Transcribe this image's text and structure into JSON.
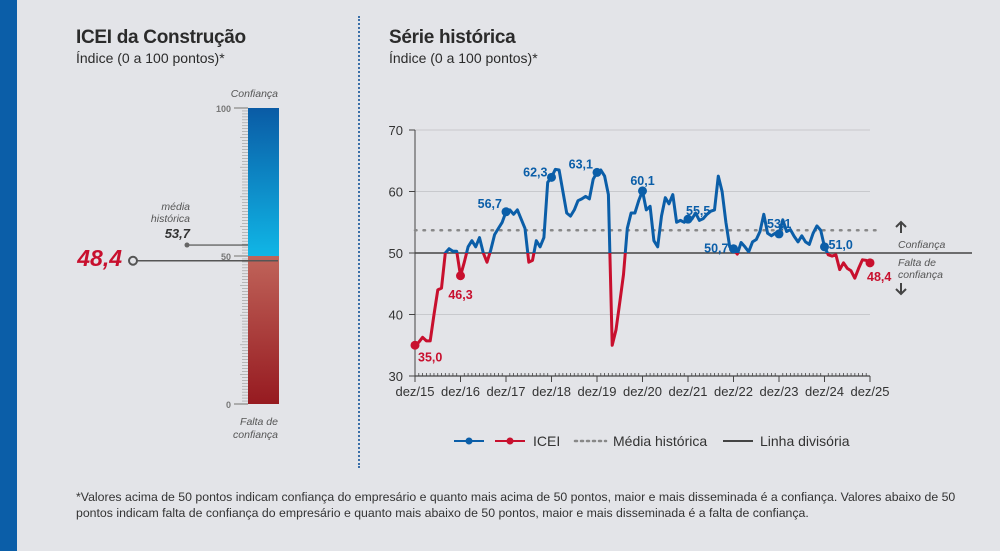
{
  "left": {
    "title": "ICEI da Construção",
    "subtitle": "Índice (0 a 100 pontos)*",
    "gauge": {
      "top_label": "Confiança",
      "bottom_label_1": "Falta de",
      "bottom_label_2": "confiança",
      "ticks": [
        "100",
        "50",
        "0"
      ],
      "range": [
        0,
        100
      ],
      "mean_label_1": "média",
      "mean_label_2": "histórica",
      "mean_value": 53.7,
      "mean_text": "53,7",
      "current_value": 48.4,
      "current_text": "48,4",
      "colors": {
        "blue_top": "#0a5ba5",
        "blue_bottom": "#10b6e6",
        "red_top": "#c0645a",
        "red_bottom": "#961a20",
        "current": "#c8102e"
      }
    }
  },
  "right": {
    "title": "Série histórica",
    "subtitle": "Índice (0 a 100 pontos)*",
    "side_up": "Confiança",
    "side_down_1": "Falta de",
    "side_down_2": "confiança"
  },
  "chart_data": {
    "type": "line",
    "ylim": [
      30,
      70
    ],
    "yticks": [
      "30",
      "40",
      "50",
      "60",
      "70"
    ],
    "xticks": [
      "dez/15",
      "dez/16",
      "dez/17",
      "dez/18",
      "dez/19",
      "dez/20",
      "dez/21",
      "dez/22",
      "dez/23",
      "dez/24",
      "dez/25"
    ],
    "grid": true,
    "legend_position": "bottom",
    "mean": 53.7,
    "divider": 50,
    "colors": {
      "above": "#0b5ea8",
      "below": "#c8102e",
      "mean": "#888888",
      "divider": "#444444"
    },
    "series": [
      {
        "name": "ICEI",
        "start": "dez/15",
        "frequency": "monthly",
        "values": [
          35.0,
          35.5,
          36.3,
          35.7,
          35.7,
          40.0,
          44.0,
          44.3,
          50.0,
          50.7,
          50.3,
          50.3,
          46.3,
          48.5,
          51.0,
          52.0,
          51.0,
          52.5,
          50.0,
          48.5,
          50.5,
          53.0,
          54.0,
          55.0,
          56.7,
          57.0,
          56.3,
          57.0,
          55.5,
          54.0,
          48.5,
          48.8,
          52.0,
          51.0,
          52.5,
          61.5,
          62.3,
          63.6,
          63.5,
          60.0,
          56.5,
          56.0,
          57.0,
          58.5,
          58.8,
          59.2,
          58.8,
          62.0,
          63.1,
          63.5,
          62.5,
          59.5,
          35.0,
          37.5,
          42.0,
          46.5,
          54.0,
          56.5,
          56.5,
          58.5,
          60.1,
          57.0,
          57.6,
          52.0,
          51.0,
          56.0,
          59.0,
          58.0,
          59.5,
          55.0,
          55.3,
          55.0,
          55.5,
          55.5,
          56.5,
          55.3,
          55.6,
          56.3,
          56.8,
          57.0,
          62.5,
          60.0,
          55.0,
          51.0,
          50.7,
          49.8,
          51.7,
          51.0,
          50.2,
          51.8,
          52.2,
          53.5,
          56.3,
          53.2,
          52.8,
          53.2,
          53.1,
          55.4,
          53.5,
          53.8,
          52.7,
          51.8,
          52.8,
          51.8,
          51.4,
          53.2,
          54.4,
          53.7,
          51.0,
          49.7,
          49.5,
          49.7,
          47.3,
          48.4,
          47.5,
          47.1,
          45.9,
          47.5,
          48.9,
          48.8,
          48.4
        ]
      }
    ],
    "annotations": [
      {
        "index": 0,
        "text": "35,0"
      },
      {
        "index": 12,
        "text": "46,3"
      },
      {
        "index": 24,
        "text": "56,7"
      },
      {
        "index": 36,
        "text": "62,3"
      },
      {
        "index": 48,
        "text": "63,1"
      },
      {
        "index": 60,
        "text": "60,1"
      },
      {
        "index": 72,
        "text": "55,5"
      },
      {
        "index": 84,
        "text": "50,7"
      },
      {
        "index": 96,
        "text": "53,1"
      },
      {
        "index": 108,
        "text": "51,0"
      },
      {
        "index": 120,
        "text": "48,4"
      }
    ],
    "legend": {
      "icei": "ICEI",
      "mean": "Média histórica",
      "divider": "Linha divisória"
    }
  },
  "footnote": "*Valores acima de 50 pontos indicam confiança do empresário e quanto mais acima de 50 pontos, maior e mais disseminada é a confiança. Valores abaixo de 50 pontos indicam falta de confiança do empresário e quanto mais abaixo de 50 pontos, maior e mais disseminada é a falta de confiança."
}
